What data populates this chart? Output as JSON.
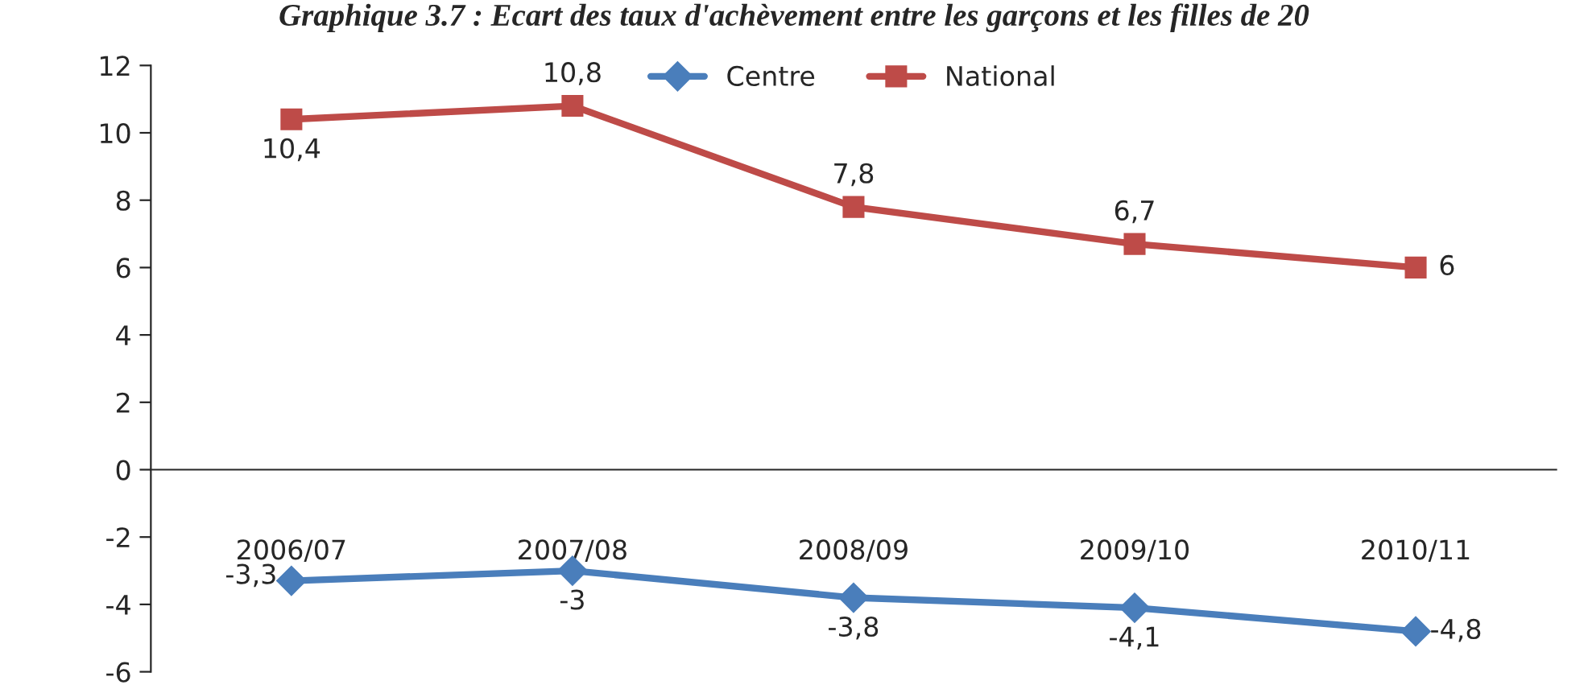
{
  "chart_data": {
    "type": "line",
    "title": "Graphique 3.7 : Ecart des taux d'achèvement entre les garçons et les filles de 20",
    "categories": [
      "2006/07",
      "2007/08",
      "2008/09",
      "2009/10",
      "2010/11"
    ],
    "series": [
      {
        "name": "Centre",
        "color": "#4a7ebb",
        "marker": "diamond",
        "values": [
          -3.3,
          -3,
          -3.8,
          -4.1,
          -4.8
        ],
        "value_labels": [
          "-3,3",
          "-3",
          "-3,8",
          "-4,1",
          "-4,8"
        ]
      },
      {
        "name": "National",
        "color": "#be4b48",
        "marker": "square",
        "values": [
          10.4,
          10.8,
          7.8,
          6.7,
          6
        ],
        "value_labels": [
          "10,4",
          "10,8",
          "7,8",
          "6,7",
          "6"
        ]
      }
    ],
    "ylim": [
      -6,
      12
    ],
    "yticks": [
      -6,
      -4,
      -2,
      0,
      2,
      4,
      6,
      8,
      10,
      12
    ],
    "legend": "top",
    "line_style": "solid"
  }
}
